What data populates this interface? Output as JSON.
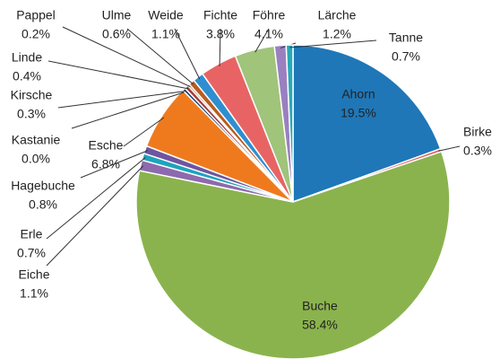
{
  "chart_data": {
    "type": "pie",
    "categories": [
      "Ahorn",
      "Birke",
      "Buche",
      "Eiche",
      "Erle",
      "Hagebuche",
      "Esche",
      "Kastanie",
      "Kirsche",
      "Linde",
      "Pappel",
      "Ulme",
      "Weide",
      "Fichte",
      "Föhre",
      "Lärche",
      "Tanne"
    ],
    "values": [
      19.5,
      0.3,
      58.4,
      1.1,
      0.7,
      0.8,
      6.8,
      0.0,
      0.3,
      0.4,
      0.2,
      0.6,
      1.1,
      3.8,
      4.1,
      1.2,
      0.7
    ],
    "value_labels": [
      "19.5%",
      "0.3%",
      "58.4%",
      "1.1%",
      "0.7%",
      "0.8%",
      "6.8%",
      "0.0%",
      "0.3%",
      "0.4%",
      "0.2%",
      "0.6%",
      "1.1%",
      "3.8%",
      "4.1%",
      "1.2%",
      "0.7%"
    ],
    "colors": [
      "#1f77b7",
      "#e3585c",
      "#8ab34e",
      "#8d6aad",
      "#1ea3bd",
      "#6f55a0",
      "#ef7a1e",
      "#2a4f8a",
      "#1d3f66",
      "#a33c3c",
      "#c8722d",
      "#b85d1f",
      "#2f8ed0",
      "#e86464",
      "#9fc47a",
      "#9a80c0",
      "#27a9b8"
    ]
  }
}
